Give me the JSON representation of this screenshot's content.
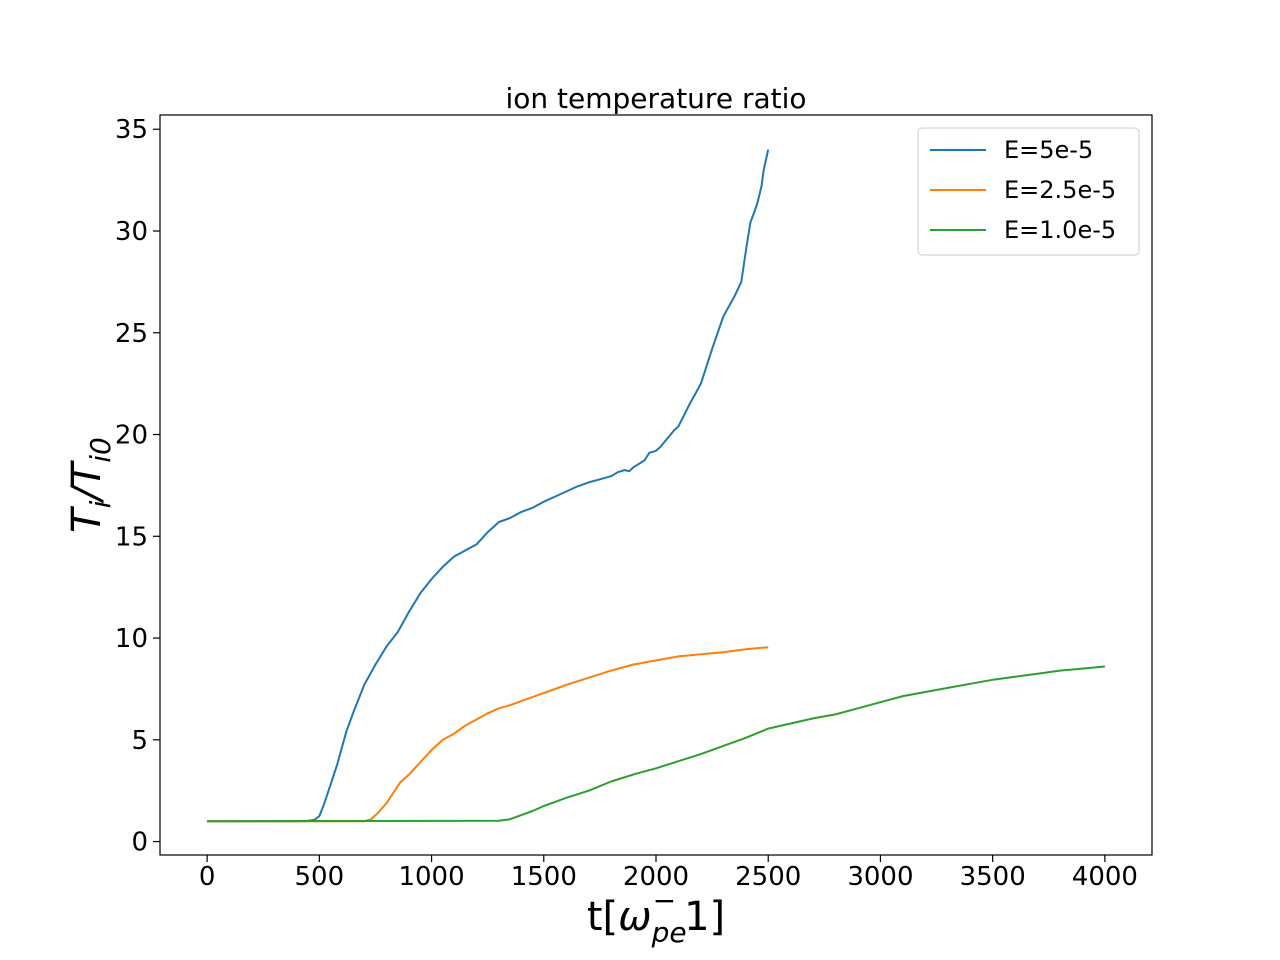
{
  "chart_data": {
    "type": "line",
    "title": "ion temperature ratio",
    "xlabel": {
      "main": "t[",
      "omega": "ω",
      "sub": "pe",
      "sup": "−",
      "tail": "1]"
    },
    "ylabel": {
      "main": "T",
      "sub1": "i",
      "slash": "/T",
      "sub2": "i0"
    },
    "xlim": [
      -210,
      4210
    ],
    "ylim": [
      -0.66,
      35.7
    ],
    "xticks": [
      0,
      500,
      1000,
      1500,
      2000,
      2500,
      3000,
      3500,
      4000
    ],
    "yticks": [
      0,
      5,
      10,
      15,
      20,
      25,
      30,
      35
    ],
    "xtick_labels": [
      "0",
      "500",
      "1000",
      "1500",
      "2000",
      "2500",
      "3000",
      "3500",
      "4000"
    ],
    "ytick_labels": [
      "0",
      "5",
      "10",
      "15",
      "20",
      "25",
      "30",
      "35"
    ],
    "grid": false,
    "legend_position": "top-right",
    "series": [
      {
        "name": "E=5e-5",
        "color": "#1f77b4",
        "x": [
          0,
          400,
          450,
          480,
          500,
          520,
          550,
          580,
          600,
          620,
          650,
          700,
          750,
          800,
          850,
          900,
          950,
          1000,
          1050,
          1100,
          1150,
          1200,
          1250,
          1300,
          1350,
          1400,
          1450,
          1500,
          1550,
          1600,
          1650,
          1700,
          1750,
          1800,
          1830,
          1860,
          1880,
          1900,
          1930,
          1950,
          1970,
          2000,
          2020,
          2050,
          2080,
          2100,
          2150,
          2200,
          2250,
          2300,
          2350,
          2380,
          2400,
          2420,
          2450,
          2470,
          2480,
          2500
        ],
        "y": [
          1,
          1,
          1.02,
          1.08,
          1.25,
          1.8,
          2.8,
          3.8,
          4.6,
          5.4,
          6.3,
          7.7,
          8.7,
          9.6,
          10.3,
          11.3,
          12.2,
          12.9,
          13.5,
          14.0,
          14.3,
          14.6,
          15.2,
          15.7,
          15.9,
          16.2,
          16.4,
          16.7,
          16.95,
          17.2,
          17.45,
          17.65,
          17.8,
          17.95,
          18.15,
          18.25,
          18.2,
          18.4,
          18.6,
          18.75,
          19.1,
          19.2,
          19.4,
          19.8,
          20.2,
          20.4,
          21.5,
          22.5,
          24.2,
          25.8,
          26.8,
          27.5,
          29,
          30.4,
          31.3,
          32.2,
          33.0,
          34.0
        ]
      },
      {
        "name": "E=2.5e-5",
        "color": "#ff7f0e",
        "x": [
          0,
          700,
          730,
          760,
          800,
          830,
          860,
          900,
          950,
          1000,
          1050,
          1100,
          1150,
          1200,
          1250,
          1300,
          1350,
          1400,
          1450,
          1500,
          1600,
          1700,
          1800,
          1900,
          2000,
          2100,
          2200,
          2300,
          2400,
          2500
        ],
        "y": [
          1,
          1,
          1.1,
          1.4,
          1.9,
          2.4,
          2.9,
          3.3,
          3.9,
          4.5,
          5.0,
          5.3,
          5.7,
          6.0,
          6.3,
          6.55,
          6.7,
          6.9,
          7.1,
          7.3,
          7.7,
          8.05,
          8.4,
          8.7,
          8.9,
          9.1,
          9.2,
          9.3,
          9.45,
          9.55
        ]
      },
      {
        "name": "E=1.0e-5",
        "color": "#2ca02c",
        "x": [
          0,
          1300,
          1350,
          1400,
          1450,
          1500,
          1550,
          1600,
          1700,
          1800,
          1900,
          2000,
          2100,
          2200,
          2300,
          2400,
          2500,
          2600,
          2700,
          2800,
          2900,
          3000,
          3100,
          3200,
          3300,
          3400,
          3500,
          3600,
          3700,
          3800,
          3900,
          4000
        ],
        "y": [
          1,
          1.02,
          1.1,
          1.3,
          1.5,
          1.75,
          1.95,
          2.15,
          2.5,
          2.95,
          3.3,
          3.6,
          3.95,
          4.3,
          4.7,
          5.1,
          5.55,
          5.8,
          6.05,
          6.25,
          6.55,
          6.85,
          7.15,
          7.35,
          7.55,
          7.75,
          7.95,
          8.1,
          8.25,
          8.4,
          8.5,
          8.6
        ]
      }
    ]
  }
}
